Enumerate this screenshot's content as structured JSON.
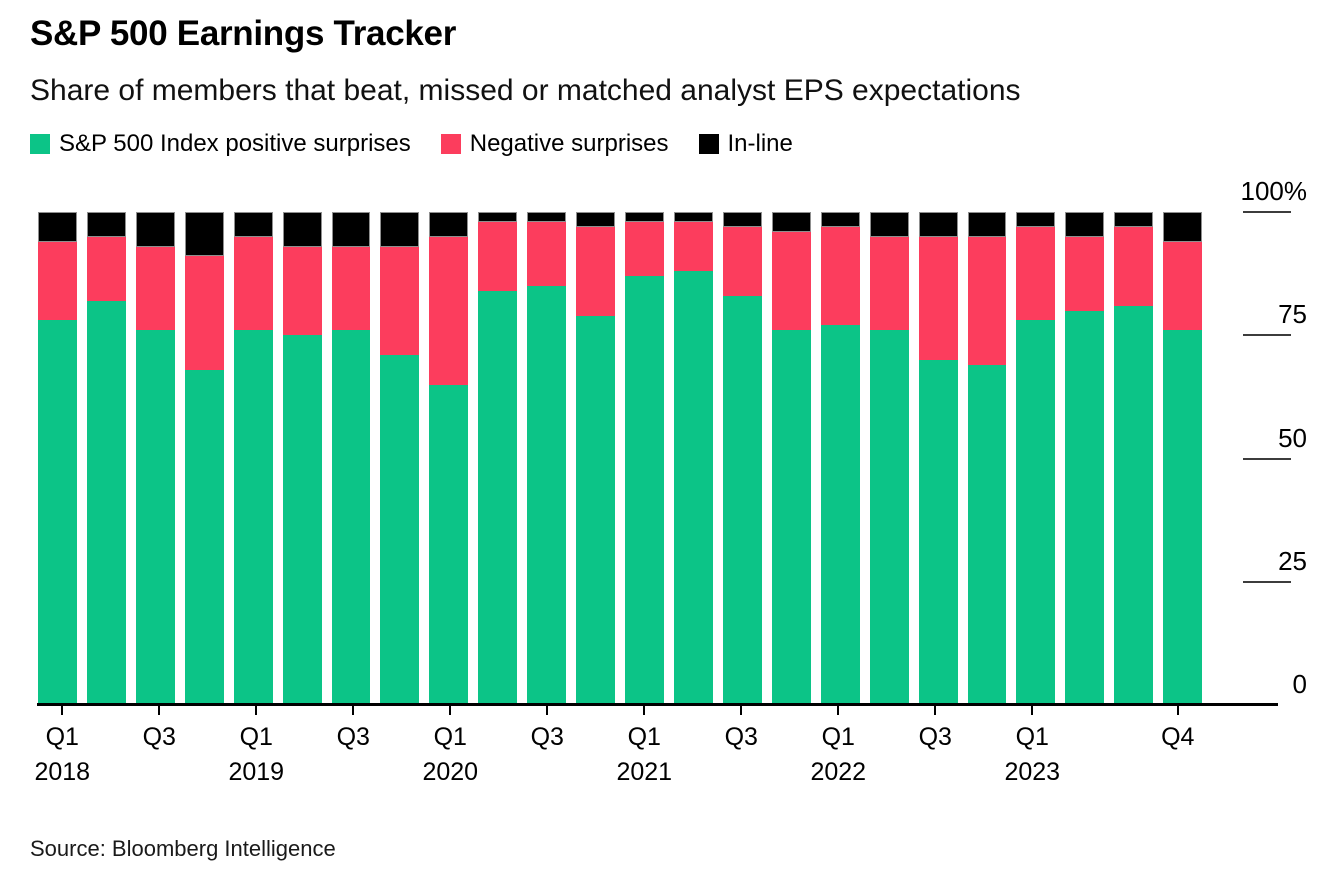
{
  "header": {
    "title": "S&P 500 Earnings Tracker",
    "subtitle": "Share of members that beat, missed or matched analyst EPS expectations"
  },
  "legend": [
    {
      "label": "S&P 500 Index positive surprises",
      "color": "#0cc487"
    },
    {
      "label": "Negative surprises",
      "color": "#fc3d5d"
    },
    {
      "label": "In-line",
      "color": "#000000"
    }
  ],
  "source": "Source: Bloomberg Intelligence",
  "chart_data": {
    "type": "bar",
    "stacked": true,
    "unit": "%",
    "title": "S&P 500 Earnings Tracker",
    "subtitle": "Share of members that beat, missed or matched analyst EPS expectations",
    "xlabel": "",
    "ylabel": "",
    "ylim": [
      0,
      100
    ],
    "grid": false,
    "legend_position": "top",
    "axis_side": "right",
    "categories": [
      "Q1 2018",
      "Q2 2018",
      "Q3 2018",
      "Q4 2018",
      "Q1 2019",
      "Q2 2019",
      "Q3 2019",
      "Q4 2019",
      "Q1 2020",
      "Q2 2020",
      "Q3 2020",
      "Q4 2020",
      "Q1 2021",
      "Q2 2021",
      "Q3 2021",
      "Q4 2021",
      "Q1 2022",
      "Q2 2022",
      "Q3 2022",
      "Q4 2022",
      "Q1 2023",
      "Q2 2023",
      "Q3 2023",
      "Q4 2023"
    ],
    "series": [
      {
        "name": "S&P 500 Index positive surprises",
        "color": "#0cc487",
        "values": [
          78,
          82,
          76,
          68,
          76,
          75,
          76,
          71,
          65,
          84,
          85,
          79,
          87,
          88,
          83,
          76,
          77,
          76,
          70,
          69,
          78,
          80,
          81,
          76
        ]
      },
      {
        "name": "Negative surprises",
        "color": "#fc3d5d",
        "values": [
          16,
          13,
          17,
          23,
          19,
          18,
          17,
          22,
          30,
          14,
          13,
          18,
          11,
          10,
          14,
          20,
          20,
          19,
          25,
          26,
          19,
          15,
          16,
          18
        ]
      },
      {
        "name": "In-line",
        "color": "#000000",
        "values": [
          6,
          5,
          7,
          9,
          5,
          7,
          7,
          7,
          5,
          2,
          2,
          3,
          2,
          2,
          3,
          4,
          3,
          5,
          5,
          5,
          3,
          5,
          3,
          6
        ]
      }
    ],
    "yticks": [
      {
        "label": "100%",
        "value": 100
      },
      {
        "label": "75",
        "value": 75
      },
      {
        "label": "50",
        "value": 50
      },
      {
        "label": "25",
        "value": 25
      },
      {
        "label": "0",
        "value": 0
      }
    ],
    "xticks": [
      {
        "index": 0,
        "quarter": "Q1",
        "year": "2018"
      },
      {
        "index": 2,
        "quarter": "Q3",
        "year": ""
      },
      {
        "index": 4,
        "quarter": "Q1",
        "year": "2019"
      },
      {
        "index": 6,
        "quarter": "Q3",
        "year": ""
      },
      {
        "index": 8,
        "quarter": "Q1",
        "year": "2020"
      },
      {
        "index": 10,
        "quarter": "Q3",
        "year": ""
      },
      {
        "index": 12,
        "quarter": "Q1",
        "year": "2021"
      },
      {
        "index": 14,
        "quarter": "Q3",
        "year": ""
      },
      {
        "index": 16,
        "quarter": "Q1",
        "year": "2022"
      },
      {
        "index": 18,
        "quarter": "Q3",
        "year": ""
      },
      {
        "index": 20,
        "quarter": "Q1",
        "year": "2023"
      },
      {
        "index": 23,
        "quarter": "Q4",
        "year": ""
      }
    ]
  }
}
